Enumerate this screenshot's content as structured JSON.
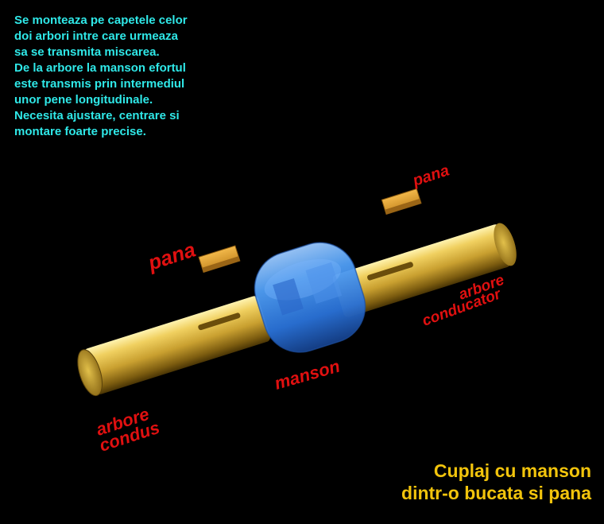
{
  "description": {
    "lines": [
      "Se monteaza pe capetele celor",
      "doi arbori intre care urmeaza",
      "sa se transmita miscarea.",
      "De la arbore la manson efortul",
      "este transmis prin intermediul",
      "unor pene longitudinale.",
      "Necesita ajustare, centrare si",
      "montare foarte precise."
    ]
  },
  "labels": {
    "pana_left": "pana",
    "pana_right": "pana",
    "manson": "manson",
    "arbore_condus_line1": "arbore",
    "arbore_condus_line2": "condus",
    "arbore_conducator_line1": "arbore",
    "arbore_conducator_line2": "conducator"
  },
  "caption": {
    "line1": "Cuplaj cu manson",
    "line2": "dintr-o bucata si pana"
  },
  "colors": {
    "shaft": "#d9b640",
    "sleeve": "#3a8ff0",
    "key": "#c88a22",
    "label": "#e01010",
    "description": "#2fe8e8",
    "caption": "#f2c40c"
  }
}
